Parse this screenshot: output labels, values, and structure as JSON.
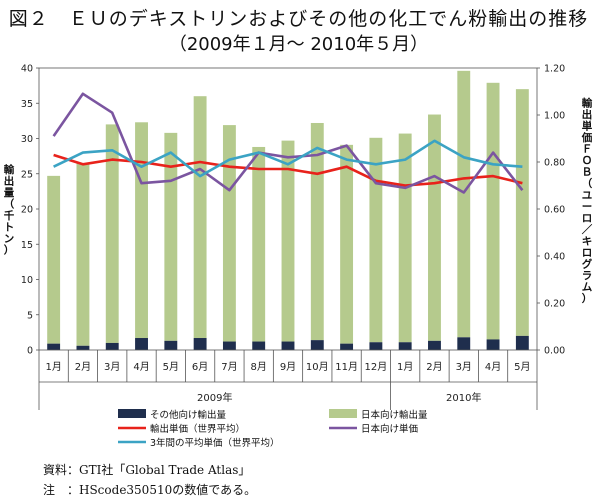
{
  "title": "図２　ＥＵのデキストリンおよびその他の化工でん粉輸出の推移",
  "subtitle": "（2009年１月～ 2010年５月）",
  "notes": {
    "source": "資料：GTI社「Global Trade Atlas」",
    "note": "注　：HScode350510の数値である。"
  },
  "chart_data": {
    "type": "bar",
    "categories": [
      "1月",
      "2月",
      "3月",
      "4月",
      "5月",
      "6月",
      "7月",
      "8月",
      "9月",
      "10月",
      "11月",
      "12月",
      "1月",
      "2月",
      "3月",
      "4月",
      "5月"
    ],
    "year_groups": [
      {
        "label": "2009年",
        "count": 12
      },
      {
        "label": "2010年",
        "count": 5
      }
    ],
    "left_axis": {
      "label": "輸出量（千トン）",
      "ylim": [
        0,
        40
      ],
      "ticks": [
        "0",
        "5",
        "10",
        "15",
        "20",
        "25",
        "30",
        "35",
        "40"
      ]
    },
    "right_axis": {
      "label": "輸出単価ＦＯＢ（ユーロ／キログラム）",
      "ylim": [
        0,
        1.2
      ],
      "ticks": [
        "0.00",
        "0.20",
        "0.40",
        "0.60",
        "0.80",
        "1.00",
        "1.20"
      ]
    },
    "bar_series": [
      {
        "name": "その他向け輸出量",
        "color": "#1f2e4d",
        "values": [
          0.9,
          0.6,
          1.0,
          1.7,
          1.3,
          1.7,
          1.2,
          1.2,
          1.2,
          1.4,
          0.9,
          1.1,
          1.1,
          1.3,
          1.8,
          1.5,
          2.0
        ]
      },
      {
        "name": "日本向け輸出量",
        "color": "#b5ca8d",
        "values": [
          23.8,
          25.9,
          31.0,
          30.6,
          29.5,
          34.3,
          30.7,
          27.6,
          28.5,
          30.8,
          28.2,
          29.0,
          29.6,
          32.1,
          37.8,
          36.4,
          35.0
        ]
      }
    ],
    "line_series": [
      {
        "name": "輸出単価（世界平均）",
        "color": "#e8221b",
        "values": [
          0.83,
          0.79,
          0.81,
          0.8,
          0.78,
          0.8,
          0.78,
          0.77,
          0.77,
          0.75,
          0.78,
          0.72,
          0.7,
          0.71,
          0.73,
          0.74,
          0.71
        ]
      },
      {
        "name": "日本向け単価",
        "color": "#7b55a0",
        "values": [
          0.91,
          1.09,
          1.01,
          0.71,
          0.72,
          0.77,
          0.68,
          0.84,
          0.82,
          0.83,
          0.87,
          0.71,
          0.69,
          0.74,
          0.67,
          0.84,
          0.68
        ]
      },
      {
        "name": "3年間の平均単価（世界平均）",
        "color": "#3ba3c4",
        "values": [
          0.78,
          0.84,
          0.85,
          0.78,
          0.84,
          0.74,
          0.81,
          0.84,
          0.79,
          0.86,
          0.81,
          0.79,
          0.81,
          0.89,
          0.82,
          0.79,
          0.78
        ]
      }
    ],
    "legend_placement": "bottom"
  }
}
